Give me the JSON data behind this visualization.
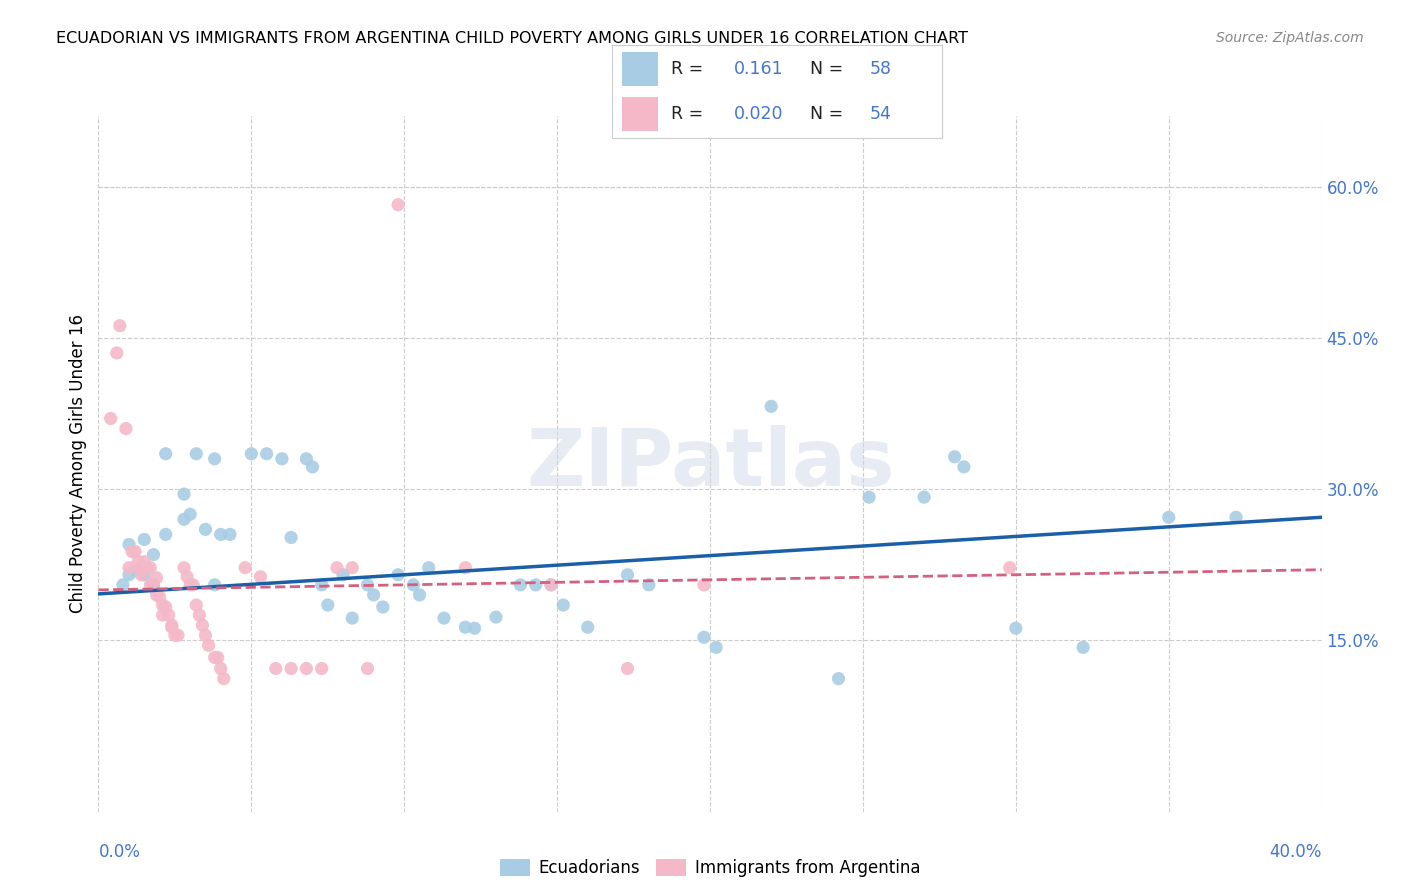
{
  "title": "ECUADORIAN VS IMMIGRANTS FROM ARGENTINA CHILD POVERTY AMONG GIRLS UNDER 16 CORRELATION CHART",
  "source": "Source: ZipAtlas.com",
  "ylabel": "Child Poverty Among Girls Under 16",
  "ytick_labels": [
    "15.0%",
    "30.0%",
    "45.0%",
    "60.0%"
  ],
  "ytick_values": [
    0.15,
    0.3,
    0.45,
    0.6
  ],
  "xlim": [
    0.0,
    0.4
  ],
  "ylim": [
    -0.02,
    0.67
  ],
  "watermark": "ZIPatlas",
  "blue_color": "#a8cce4",
  "pink_color": "#f4b8c8",
  "trend_blue": "#1a5fa8",
  "trend_pink": "#d46080",
  "blue_scatter": [
    [
      0.008,
      0.205
    ],
    [
      0.01,
      0.215
    ],
    [
      0.012,
      0.22
    ],
    [
      0.015,
      0.215
    ],
    [
      0.018,
      0.205
    ],
    [
      0.01,
      0.245
    ],
    [
      0.015,
      0.25
    ],
    [
      0.018,
      0.235
    ],
    [
      0.022,
      0.255
    ],
    [
      0.028,
      0.27
    ],
    [
      0.03,
      0.275
    ],
    [
      0.035,
      0.26
    ],
    [
      0.022,
      0.335
    ],
    [
      0.032,
      0.335
    ],
    [
      0.038,
      0.33
    ],
    [
      0.028,
      0.295
    ],
    [
      0.038,
      0.205
    ],
    [
      0.04,
      0.255
    ],
    [
      0.043,
      0.255
    ],
    [
      0.05,
      0.335
    ],
    [
      0.055,
      0.335
    ],
    [
      0.06,
      0.33
    ],
    [
      0.063,
      0.252
    ],
    [
      0.068,
      0.33
    ],
    [
      0.07,
      0.322
    ],
    [
      0.073,
      0.205
    ],
    [
      0.075,
      0.185
    ],
    [
      0.08,
      0.215
    ],
    [
      0.083,
      0.172
    ],
    [
      0.088,
      0.205
    ],
    [
      0.09,
      0.195
    ],
    [
      0.093,
      0.183
    ],
    [
      0.098,
      0.215
    ],
    [
      0.103,
      0.205
    ],
    [
      0.105,
      0.195
    ],
    [
      0.108,
      0.222
    ],
    [
      0.113,
      0.172
    ],
    [
      0.12,
      0.163
    ],
    [
      0.123,
      0.162
    ],
    [
      0.13,
      0.173
    ],
    [
      0.138,
      0.205
    ],
    [
      0.143,
      0.205
    ],
    [
      0.148,
      0.205
    ],
    [
      0.152,
      0.185
    ],
    [
      0.16,
      0.163
    ],
    [
      0.173,
      0.215
    ],
    [
      0.18,
      0.205
    ],
    [
      0.198,
      0.153
    ],
    [
      0.202,
      0.143
    ],
    [
      0.22,
      0.382
    ],
    [
      0.242,
      0.112
    ],
    [
      0.252,
      0.292
    ],
    [
      0.27,
      0.292
    ],
    [
      0.28,
      0.332
    ],
    [
      0.283,
      0.322
    ],
    [
      0.3,
      0.162
    ],
    [
      0.322,
      0.143
    ],
    [
      0.35,
      0.272
    ],
    [
      0.372,
      0.272
    ]
  ],
  "pink_scatter": [
    [
      0.004,
      0.37
    ],
    [
      0.006,
      0.435
    ],
    [
      0.007,
      0.462
    ],
    [
      0.009,
      0.36
    ],
    [
      0.01,
      0.222
    ],
    [
      0.011,
      0.238
    ],
    [
      0.012,
      0.238
    ],
    [
      0.013,
      0.228
    ],
    [
      0.014,
      0.222
    ],
    [
      0.014,
      0.215
    ],
    [
      0.015,
      0.228
    ],
    [
      0.016,
      0.222
    ],
    [
      0.017,
      0.205
    ],
    [
      0.017,
      0.222
    ],
    [
      0.018,
      0.205
    ],
    [
      0.019,
      0.195
    ],
    [
      0.019,
      0.212
    ],
    [
      0.02,
      0.193
    ],
    [
      0.021,
      0.185
    ],
    [
      0.021,
      0.175
    ],
    [
      0.022,
      0.183
    ],
    [
      0.023,
      0.175
    ],
    [
      0.024,
      0.165
    ],
    [
      0.024,
      0.163
    ],
    [
      0.025,
      0.155
    ],
    [
      0.026,
      0.155
    ],
    [
      0.028,
      0.222
    ],
    [
      0.029,
      0.213
    ],
    [
      0.03,
      0.205
    ],
    [
      0.031,
      0.205
    ],
    [
      0.032,
      0.185
    ],
    [
      0.033,
      0.175
    ],
    [
      0.034,
      0.165
    ],
    [
      0.035,
      0.155
    ],
    [
      0.036,
      0.145
    ],
    [
      0.038,
      0.133
    ],
    [
      0.039,
      0.133
    ],
    [
      0.04,
      0.122
    ],
    [
      0.041,
      0.112
    ],
    [
      0.048,
      0.222
    ],
    [
      0.053,
      0.213
    ],
    [
      0.058,
      0.122
    ],
    [
      0.063,
      0.122
    ],
    [
      0.068,
      0.122
    ],
    [
      0.073,
      0.122
    ],
    [
      0.078,
      0.222
    ],
    [
      0.083,
      0.222
    ],
    [
      0.088,
      0.122
    ],
    [
      0.098,
      0.582
    ],
    [
      0.12,
      0.222
    ],
    [
      0.148,
      0.205
    ],
    [
      0.173,
      0.122
    ],
    [
      0.198,
      0.205
    ],
    [
      0.298,
      0.222
    ]
  ],
  "blue_trend_x": [
    0.0,
    0.4
  ],
  "blue_trend_y": [
    0.196,
    0.272
  ],
  "pink_trend_x": [
    0.0,
    0.4
  ],
  "pink_trend_y": [
    0.2,
    0.22
  ],
  "grid_x": [
    0.0,
    0.05,
    0.1,
    0.15,
    0.2,
    0.25,
    0.3,
    0.35,
    0.4
  ],
  "label_color": "#4477cc"
}
